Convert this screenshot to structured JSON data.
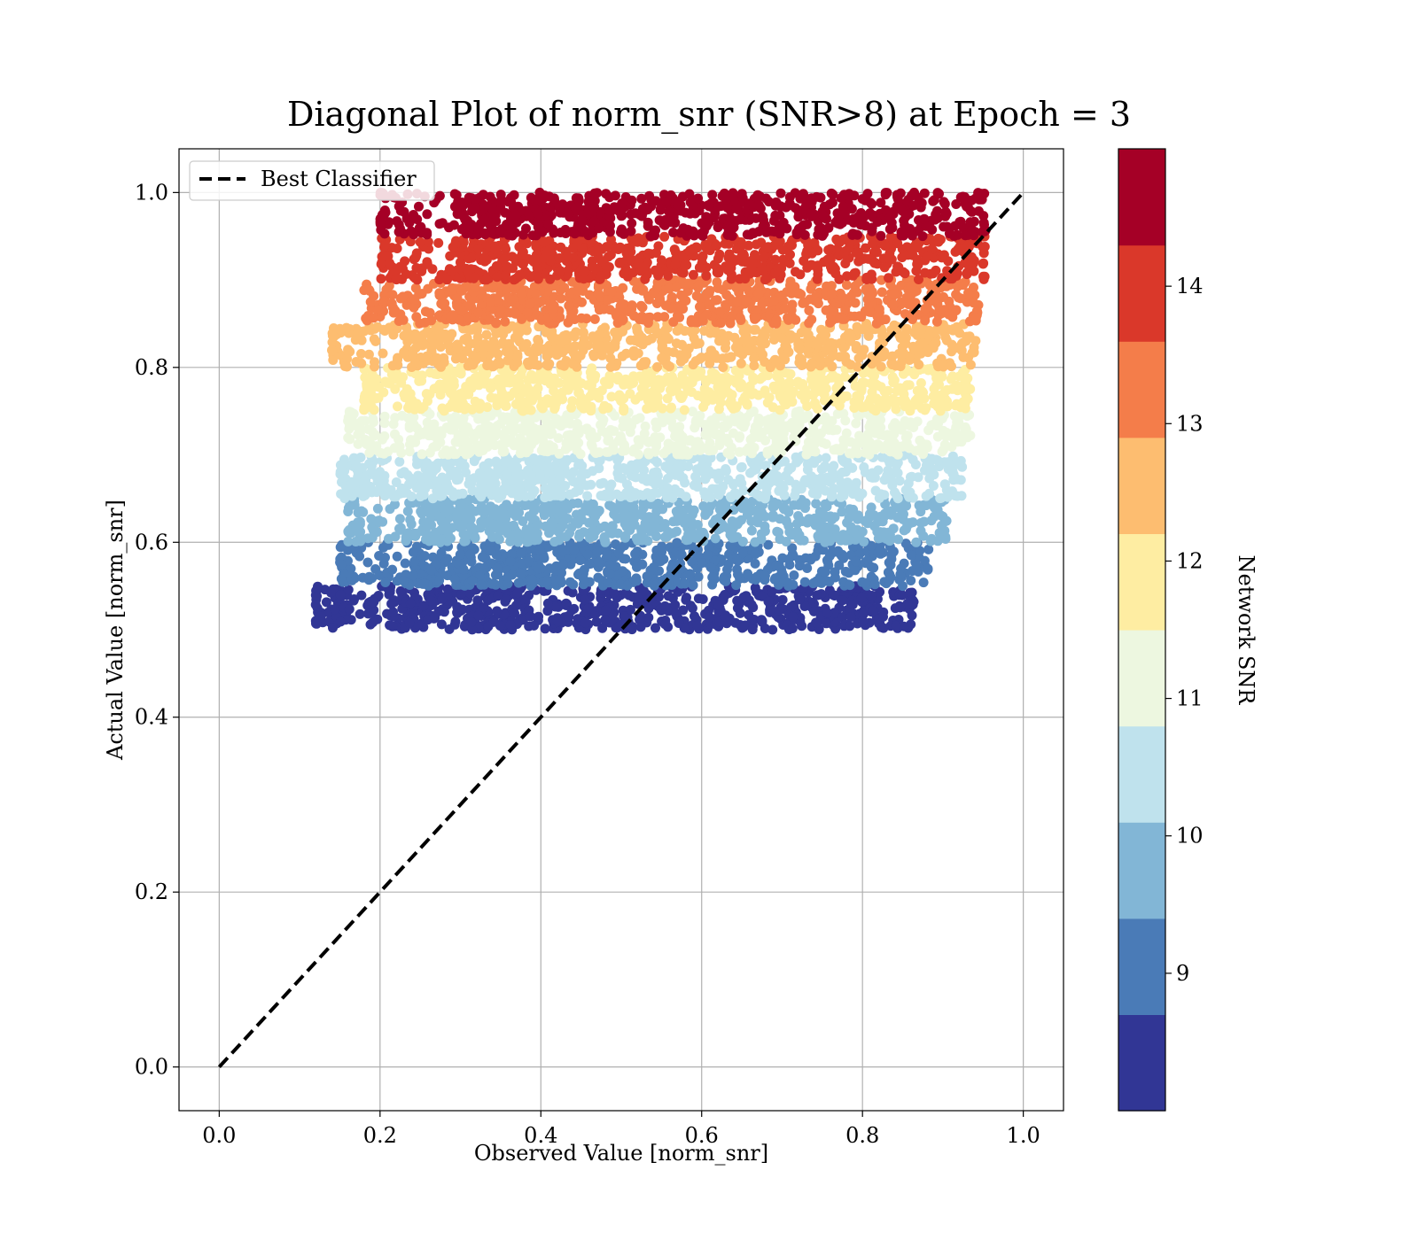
{
  "chart_data": {
    "type": "scatter",
    "title": "Diagonal Plot of norm_snr (SNR>8) at Epoch = 3",
    "xlabel": "Observed Value [norm_snr]",
    "ylabel": "Actual Value [norm_snr]",
    "xlim": [
      -0.05,
      1.05
    ],
    "ylim": [
      -0.05,
      1.05
    ],
    "x_ticks": [
      "0.0",
      "0.2",
      "0.4",
      "0.6",
      "0.8",
      "1.0"
    ],
    "y_ticks": [
      "0.0",
      "0.2",
      "0.4",
      "0.6",
      "0.8",
      "1.0"
    ],
    "grid": true,
    "legend": {
      "position": "top-left",
      "entries": [
        "Best Classifier"
      ]
    },
    "reference_line": {
      "name": "Best Classifier",
      "style": "dashed",
      "color": "#000000",
      "x": [
        0.0,
        1.0
      ],
      "y": [
        0.0,
        1.0
      ]
    },
    "colorbar": {
      "label": "Network SNR",
      "range": [
        8.0,
        15.0
      ],
      "ticks": [
        "9",
        "10",
        "11",
        "12",
        "13",
        "14"
      ],
      "colors": [
        "#313695",
        "#4a7bb7",
        "#82b6d6",
        "#bfe2ed",
        "#edf7e0",
        "#feeda2",
        "#fdbd70",
        "#f47d4a",
        "#da382a",
        "#a50026"
      ]
    },
    "series": [
      {
        "snr_range": [
          8.0,
          8.7
        ],
        "color": "#313695",
        "y_range": [
          0.5,
          0.55
        ],
        "x_range": [
          0.12,
          0.88
        ]
      },
      {
        "snr_range": [
          8.7,
          9.4
        ],
        "color": "#4a7bb7",
        "y_range": [
          0.55,
          0.6
        ],
        "x_range": [
          0.15,
          0.9
        ]
      },
      {
        "snr_range": [
          9.4,
          10.1
        ],
        "color": "#82b6d6",
        "y_range": [
          0.6,
          0.65
        ],
        "x_range": [
          0.16,
          0.92
        ]
      },
      {
        "snr_range": [
          10.1,
          10.8
        ],
        "color": "#bfe2ed",
        "y_range": [
          0.65,
          0.7
        ],
        "x_range": [
          0.15,
          0.94
        ]
      },
      {
        "snr_range": [
          10.8,
          11.5
        ],
        "color": "#edf7e0",
        "y_range": [
          0.7,
          0.75
        ],
        "x_range": [
          0.16,
          0.95
        ]
      },
      {
        "snr_range": [
          11.5,
          12.2
        ],
        "color": "#feeda2",
        "y_range": [
          0.75,
          0.8
        ],
        "x_range": [
          0.18,
          0.95
        ]
      },
      {
        "snr_range": [
          12.2,
          12.9
        ],
        "color": "#fdbd70",
        "y_range": [
          0.8,
          0.85
        ],
        "x_range": [
          0.14,
          0.96
        ]
      },
      {
        "snr_range": [
          12.9,
          13.6
        ],
        "color": "#f47d4a",
        "y_range": [
          0.85,
          0.9
        ],
        "x_range": [
          0.18,
          0.96
        ]
      },
      {
        "snr_range": [
          13.6,
          14.3
        ],
        "color": "#da382a",
        "y_range": [
          0.9,
          0.95
        ],
        "x_range": [
          0.2,
          0.97
        ]
      },
      {
        "snr_range": [
          14.3,
          15.0
        ],
        "color": "#a50026",
        "y_range": [
          0.95,
          1.0
        ],
        "x_range": [
          0.2,
          0.97
        ]
      }
    ]
  }
}
